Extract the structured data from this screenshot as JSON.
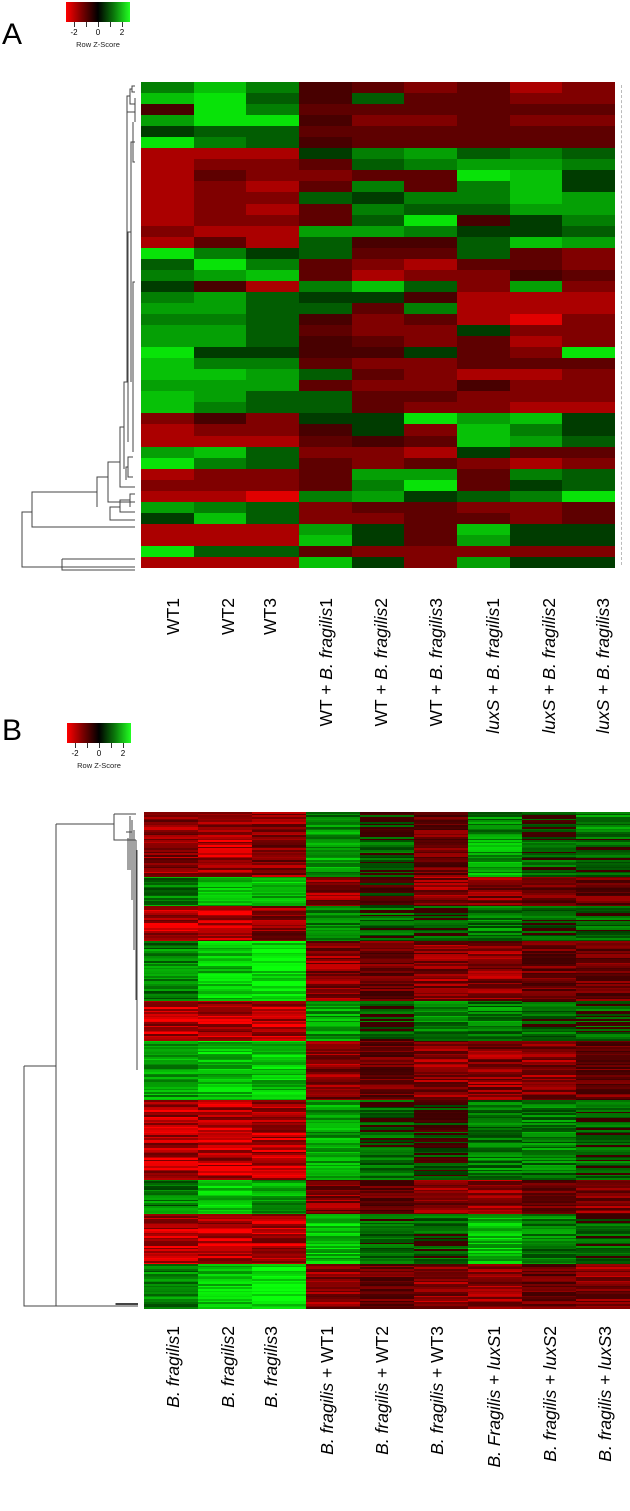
{
  "chart_data": [
    {
      "type": "heatmap",
      "panel": "A",
      "title": "",
      "color_key": {
        "title": "Row Z-Score",
        "ticks": [
          "-2",
          "0",
          "2"
        ],
        "low_color": "#ff0000",
        "mid_color": "#000000",
        "high_color": "#22ff22",
        "range": [
          -3,
          3
        ]
      },
      "columns": [
        "WT1",
        "WT2",
        "WT3",
        "WT + B. fragilis1",
        "WT + B. fragilis2",
        "WT + B. fragilis3",
        "luxS + B. fragilis1",
        "luxS + B. fragilis2",
        "luxS + B. fragilis3"
      ],
      "row_dendrogram": true,
      "approx_rows": 60,
      "values": [
        [
          1.0,
          2.0,
          1.0,
          -0.5,
          -1.0,
          -1.5,
          -1.0,
          -2.0,
          -1.5
        ],
        [
          2.0,
          2.5,
          0.5,
          -0.5,
          0.5,
          -1.0,
          -1.0,
          -1.5,
          -1.5
        ],
        [
          -0.5,
          2.5,
          1.0,
          -1.0,
          -1.0,
          -1.0,
          -1.0,
          -1.0,
          -1.0
        ],
        [
          1.5,
          2.5,
          2.5,
          -0.5,
          -1.5,
          -1.5,
          -1.0,
          -1.5,
          -1.5
        ],
        [
          0.0,
          0.5,
          0.5,
          -1.0,
          -1.0,
          -1.0,
          -1.0,
          -1.0,
          -1.0
        ],
        [
          2.5,
          1.0,
          0.5,
          -0.5,
          -1.0,
          -1.0,
          -1.0,
          -1.0,
          -1.0
        ],
        [
          -2.0,
          -2.0,
          -2.0,
          0.0,
          1.0,
          1.5,
          0.5,
          1.0,
          0.5
        ],
        [
          -2.0,
          -1.5,
          -1.5,
          -1.0,
          0.5,
          1.0,
          1.5,
          1.5,
          1.0
        ],
        [
          -2.0,
          -1.0,
          -1.5,
          -1.5,
          -1.0,
          -1.0,
          2.5,
          2.0,
          0.0
        ],
        [
          -2.0,
          -1.5,
          -2.0,
          -1.0,
          1.0,
          -1.0,
          1.0,
          2.0,
          0.0
        ],
        [
          -2.0,
          -1.5,
          -1.5,
          0.5,
          0.0,
          1.0,
          1.0,
          2.0,
          1.5
        ],
        [
          -2.0,
          -1.5,
          -2.0,
          -1.0,
          1.0,
          0.5,
          0.5,
          1.5,
          1.5
        ],
        [
          -2.0,
          -1.5,
          -1.5,
          -1.0,
          0.5,
          2.5,
          -0.5,
          0.0,
          1.0
        ],
        [
          -1.5,
          -2.0,
          -2.0,
          1.5,
          1.5,
          1.0,
          0.0,
          0.0,
          0.5
        ],
        [
          -2.0,
          -1.0,
          -2.0,
          0.5,
          -0.5,
          -0.5,
          0.5,
          2.0,
          1.5
        ],
        [
          2.5,
          1.0,
          0.0,
          0.5,
          -1.0,
          -1.0,
          0.5,
          -1.0,
          -1.5
        ],
        [
          0.5,
          2.5,
          1.0,
          -1.0,
          -1.5,
          -2.0,
          -1.0,
          -1.0,
          -1.5
        ],
        [
          1.0,
          1.5,
          2.0,
          -1.0,
          -2.0,
          -1.5,
          -1.5,
          -0.5,
          -1.0
        ],
        [
          0.0,
          -0.5,
          -2.0,
          1.0,
          2.0,
          0.5,
          -1.5,
          1.5,
          -1.5
        ],
        [
          1.0,
          1.5,
          0.5,
          0.0,
          0.0,
          -0.5,
          -2.0,
          -2.0,
          -2.0
        ],
        [
          1.5,
          1.5,
          0.5,
          0.5,
          -1.0,
          1.0,
          -2.0,
          -2.0,
          -2.0
        ],
        [
          1.0,
          1.0,
          0.5,
          -0.5,
          -1.5,
          -1.0,
          -2.0,
          -2.5,
          -1.5
        ],
        [
          1.5,
          1.5,
          0.5,
          -1.0,
          -1.5,
          -1.5,
          0.0,
          -1.5,
          -1.5
        ],
        [
          1.5,
          1.5,
          0.5,
          -0.5,
          -1.0,
          -1.5,
          -1.0,
          -2.0,
          -1.5
        ],
        [
          2.5,
          0.0,
          0.0,
          -0.5,
          -0.5,
          0.0,
          -1.0,
          -1.5,
          2.5
        ],
        [
          2.0,
          1.0,
          1.0,
          -1.0,
          -1.5,
          -1.5,
          -1.0,
          -1.0,
          -1.0
        ],
        [
          2.0,
          2.0,
          1.5,
          0.5,
          -1.0,
          -1.5,
          -2.0,
          -2.0,
          -1.5
        ],
        [
          1.5,
          1.5,
          1.5,
          -1.0,
          -1.5,
          -1.5,
          -0.5,
          -1.5,
          -1.5
        ],
        [
          2.0,
          1.5,
          0.5,
          0.5,
          -1.0,
          -1.0,
          -1.5,
          -1.5,
          -1.5
        ],
        [
          2.0,
          1.0,
          0.5,
          0.5,
          -1.0,
          -1.5,
          -1.5,
          -2.0,
          -2.0
        ],
        [
          -1.5,
          -0.5,
          -1.5,
          0.0,
          0.0,
          2.5,
          1.5,
          2.0,
          0.0
        ],
        [
          -2.0,
          -1.5,
          -1.5,
          -0.5,
          0.0,
          -1.5,
          2.0,
          1.0,
          0.0
        ],
        [
          -2.0,
          -2.0,
          -2.0,
          -1.0,
          -0.5,
          -1.0,
          2.0,
          1.5,
          0.5
        ],
        [
          1.5,
          2.0,
          0.5,
          -1.5,
          -1.5,
          -2.0,
          0.0,
          -1.0,
          -1.0
        ],
        [
          2.5,
          1.0,
          0.5,
          -1.0,
          -1.5,
          -1.0,
          -1.5,
          -2.0,
          -1.5
        ],
        [
          -2.0,
          -1.5,
          -1.5,
          -1.0,
          1.5,
          1.5,
          -1.0,
          1.0,
          0.5
        ],
        [
          -1.5,
          -1.5,
          -1.5,
          -1.0,
          1.0,
          2.5,
          -1.0,
          0.0,
          0.5
        ],
        [
          -2.0,
          -2.0,
          -2.5,
          1.0,
          1.5,
          0.0,
          0.5,
          1.0,
          2.5
        ],
        [
          1.5,
          1.0,
          0.5,
          -1.5,
          -1.0,
          -1.0,
          -1.5,
          -1.5,
          -1.0
        ],
        [
          0.0,
          2.0,
          0.5,
          -1.5,
          -1.5,
          -1.0,
          -1.0,
          -1.5,
          -1.0
        ],
        [
          -2.0,
          -2.0,
          -2.0,
          1.5,
          0.0,
          -1.0,
          2.0,
          0.0,
          0.0
        ],
        [
          -2.0,
          -2.0,
          -2.0,
          2.0,
          0.0,
          -1.0,
          1.5,
          0.0,
          0.0
        ],
        [
          2.5,
          0.5,
          0.5,
          -1.0,
          -1.5,
          -1.5,
          -1.5,
          -1.5,
          -1.5
        ],
        [
          -2.0,
          -2.0,
          -2.0,
          2.0,
          0.0,
          -1.5,
          1.5,
          0.0,
          0.0
        ]
      ]
    },
    {
      "type": "heatmap",
      "panel": "B",
      "title": "",
      "color_key": {
        "title": "Row Z-Score",
        "ticks": [
          "-2",
          "0",
          "2"
        ],
        "low_color": "#ff0000",
        "mid_color": "#000000",
        "high_color": "#22ff22",
        "range": [
          -3,
          3
        ]
      },
      "columns": [
        "B. fragilis1",
        "B. fragilis2",
        "B. fragilis3",
        "B. fragilis + WT1",
        "B. fragilis + WT2",
        "B. fragilis + WT3",
        "B. Fragilis + luxS1",
        "B. fragilis + luxS2",
        "B. fragilis + luxS3"
      ],
      "row_dendrogram": true,
      "approx_rows": 300,
      "clusters_top_to_bottom": [
        {
          "rows_frac": 0.04,
          "pattern": [
            -1.5,
            -1.5,
            -1.5,
            1.0,
            0.0,
            -1.0,
            1.0,
            0.0,
            1.0
          ]
        },
        {
          "rows_frac": 0.09,
          "pattern": [
            -1.5,
            -2.0,
            -1.5,
            1.5,
            0.5,
            -1.0,
            1.5,
            0.5,
            0.5
          ]
        },
        {
          "rows_frac": 0.06,
          "pattern": [
            1.0,
            2.0,
            2.0,
            -1.5,
            -0.5,
            -1.5,
            -1.5,
            -1.0,
            -1.0
          ]
        },
        {
          "rows_frac": 0.07,
          "pattern": [
            -2.0,
            -2.0,
            -1.5,
            1.0,
            0.5,
            0.5,
            1.0,
            0.5,
            0.5
          ]
        },
        {
          "rows_frac": 0.12,
          "pattern": [
            1.0,
            2.0,
            2.5,
            -1.5,
            -1.0,
            -1.5,
            -1.5,
            -1.0,
            -1.0
          ]
        },
        {
          "rows_frac": 0.08,
          "pattern": [
            -2.0,
            -2.0,
            -2.0,
            1.5,
            0.5,
            1.0,
            1.0,
            0.5,
            0.5
          ]
        },
        {
          "rows_frac": 0.12,
          "pattern": [
            1.5,
            2.0,
            2.0,
            -1.5,
            -1.0,
            -1.5,
            -1.5,
            -1.5,
            -1.0
          ]
        },
        {
          "rows_frac": 0.16,
          "pattern": [
            -2.0,
            -2.0,
            -2.0,
            1.5,
            0.5,
            0.0,
            1.0,
            1.0,
            0.5
          ]
        },
        {
          "rows_frac": 0.07,
          "pattern": [
            1.0,
            2.0,
            1.5,
            -1.5,
            -1.0,
            -1.5,
            -1.5,
            -1.0,
            -1.5
          ]
        },
        {
          "rows_frac": 0.1,
          "pattern": [
            -2.0,
            -2.0,
            -2.0,
            2.0,
            0.5,
            0.5,
            2.0,
            1.0,
            0.5
          ]
        },
        {
          "rows_frac": 0.09,
          "pattern": [
            1.0,
            2.0,
            2.5,
            -1.5,
            -1.0,
            -1.5,
            -1.5,
            -1.0,
            -1.5
          ]
        }
      ]
    }
  ],
  "panels": {
    "a": {
      "letter": "A",
      "key": {
        "tick_neg": "-2",
        "tick_zero": "0",
        "tick_pos": "2",
        "title": "Row Z-Score"
      },
      "labels": [
        {
          "pre": "",
          "italic": "",
          "post": "WT1"
        },
        {
          "pre": "",
          "italic": "",
          "post": "WT2"
        },
        {
          "pre": "",
          "italic": "",
          "post": "WT3"
        },
        {
          "pre": "WT + ",
          "italic": "B. fragilis",
          "post": "1"
        },
        {
          "pre": "WT + ",
          "italic": "B. fragilis",
          "post": "2"
        },
        {
          "pre": "WT + ",
          "italic": "B. fragilis",
          "post": "3"
        },
        {
          "pre": "",
          "italic": "luxS",
          "post": " + ",
          "italic2": "B. fragilis",
          "post2": "1"
        },
        {
          "pre": "",
          "italic": "luxS",
          "post": " + ",
          "italic2": "B. fragilis",
          "post2": "2"
        },
        {
          "pre": "",
          "italic": "luxS",
          "post": " + ",
          "italic2": "B. fragilis",
          "post2": "3"
        }
      ]
    },
    "b": {
      "letter": "B",
      "key": {
        "tick_neg": "-2",
        "tick_zero": "0",
        "tick_pos": "2",
        "title": "Row Z-Score"
      },
      "labels": [
        {
          "italic": "B. fragilis",
          "post": "1"
        },
        {
          "italic": "B. fragilis",
          "post": "2"
        },
        {
          "italic": "B. fragilis",
          "post": "3"
        },
        {
          "italic": "B. fragilis",
          "post": " + WT1"
        },
        {
          "italic": "B. fragilis",
          "post": " + WT2"
        },
        {
          "italic": "B. fragilis",
          "post": " + WT3"
        },
        {
          "italic": "B. Fragilis",
          "post": " + ",
          "italic2": "luxS",
          "post2": "1"
        },
        {
          "italic": "B. fragilis",
          "post": " + ",
          "italic2": "luxS",
          "post2": "2"
        },
        {
          "italic": "B. fragilis",
          "post": " + ",
          "italic2": "luxS",
          "post2": "3"
        }
      ]
    }
  }
}
